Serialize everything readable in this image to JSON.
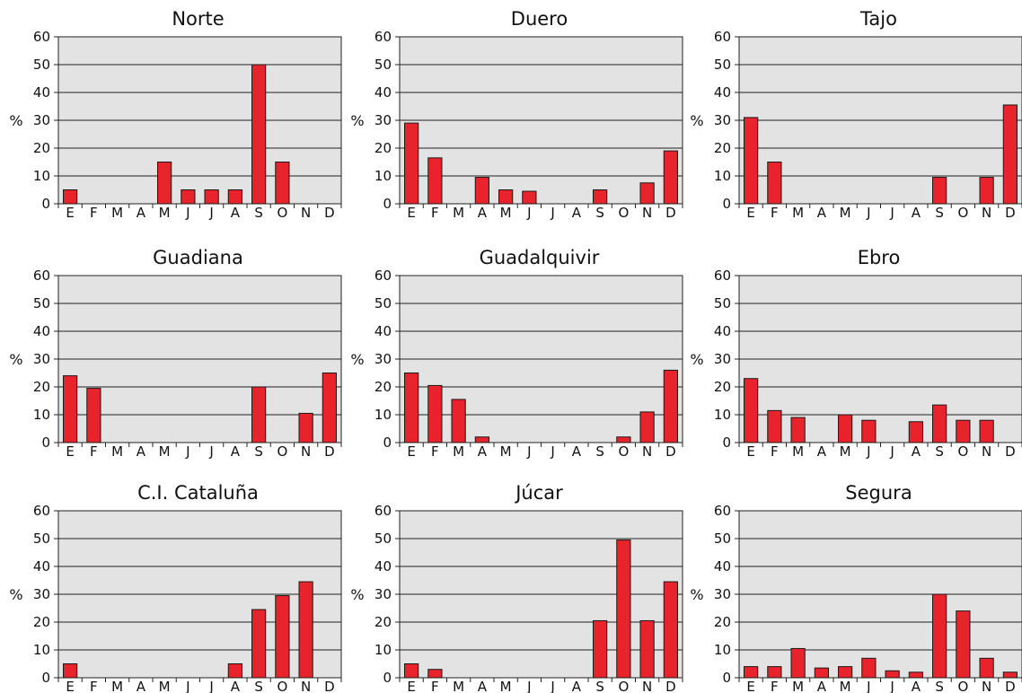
{
  "chart_data": [
    {
      "type": "bar",
      "title": "Norte",
      "ylabel": "%",
      "ylim": [
        0,
        60
      ],
      "yticks": [
        0,
        10,
        20,
        30,
        40,
        50,
        60
      ],
      "categories": [
        "E",
        "F",
        "M",
        "A",
        "M",
        "J",
        "J",
        "A",
        "S",
        "O",
        "N",
        "D"
      ],
      "values": [
        5,
        0,
        0,
        0,
        15,
        5,
        5,
        5,
        50,
        15,
        0,
        0
      ]
    },
    {
      "type": "bar",
      "title": "Duero",
      "ylabel": "%",
      "ylim": [
        0,
        60
      ],
      "yticks": [
        0,
        10,
        20,
        30,
        40,
        50,
        60
      ],
      "categories": [
        "E",
        "F",
        "M",
        "A",
        "M",
        "J",
        "J",
        "A",
        "S",
        "O",
        "N",
        "D"
      ],
      "values": [
        29,
        16.5,
        0,
        9.5,
        5,
        4.5,
        0,
        0,
        5,
        0,
        7.5,
        19
      ]
    },
    {
      "type": "bar",
      "title": "Tajo",
      "ylabel": "%",
      "ylim": [
        0,
        60
      ],
      "yticks": [
        0,
        10,
        20,
        30,
        40,
        50,
        60
      ],
      "categories": [
        "E",
        "F",
        "M",
        "A",
        "M",
        "J",
        "J",
        "A",
        "S",
        "O",
        "N",
        "D"
      ],
      "values": [
        31,
        15,
        0,
        0,
        0,
        0,
        0,
        0,
        9.5,
        0,
        9.5,
        35.5
      ]
    },
    {
      "type": "bar",
      "title": "Guadiana",
      "ylabel": "%",
      "ylim": [
        0,
        60
      ],
      "yticks": [
        0,
        10,
        20,
        30,
        40,
        50,
        60
      ],
      "categories": [
        "E",
        "F",
        "M",
        "A",
        "M",
        "J",
        "J",
        "A",
        "S",
        "O",
        "N",
        "D"
      ],
      "values": [
        24,
        19.5,
        0,
        0,
        0,
        0,
        0,
        0,
        20,
        0,
        10.5,
        25
      ]
    },
    {
      "type": "bar",
      "title": "Guadalquivir",
      "ylabel": "%",
      "ylim": [
        0,
        60
      ],
      "yticks": [
        0,
        10,
        20,
        30,
        40,
        50,
        60
      ],
      "categories": [
        "E",
        "F",
        "M",
        "A",
        "M",
        "J",
        "J",
        "A",
        "S",
        "O",
        "N",
        "D"
      ],
      "values": [
        25,
        20.5,
        15.5,
        2,
        0,
        0,
        0,
        0,
        0,
        2,
        11,
        26
      ]
    },
    {
      "type": "bar",
      "title": "Ebro",
      "ylabel": "%",
      "ylim": [
        0,
        60
      ],
      "yticks": [
        0,
        10,
        20,
        30,
        40,
        50,
        60
      ],
      "categories": [
        "E",
        "F",
        "M",
        "A",
        "M",
        "J",
        "J",
        "A",
        "S",
        "O",
        "N",
        "D"
      ],
      "values": [
        23,
        11.5,
        9,
        0,
        10,
        8,
        0,
        7.5,
        13.5,
        8,
        8,
        0
      ]
    },
    {
      "type": "bar",
      "title": "C.I. Cataluña",
      "ylabel": "%",
      "ylim": [
        0,
        60
      ],
      "yticks": [
        0,
        10,
        20,
        30,
        40,
        50,
        60
      ],
      "categories": [
        "E",
        "F",
        "M",
        "A",
        "M",
        "J",
        "J",
        "A",
        "S",
        "O",
        "N",
        "D"
      ],
      "values": [
        5,
        0,
        0,
        0,
        0,
        0,
        0,
        5,
        24.5,
        29.5,
        34.5,
        0
      ]
    },
    {
      "type": "bar",
      "title": "Júcar",
      "ylabel": "%",
      "ylim": [
        0,
        60
      ],
      "yticks": [
        0,
        10,
        20,
        30,
        40,
        50,
        60
      ],
      "categories": [
        "E",
        "F",
        "M",
        "A",
        "M",
        "J",
        "J",
        "A",
        "S",
        "O",
        "N",
        "D"
      ],
      "values": [
        5,
        3,
        0,
        0,
        0,
        0,
        0,
        0,
        20.5,
        49.5,
        20.5,
        34.5
      ]
    },
    {
      "type": "bar",
      "title": "Segura",
      "ylabel": "%",
      "ylim": [
        0,
        60
      ],
      "yticks": [
        0,
        10,
        20,
        30,
        40,
        50,
        60
      ],
      "categories": [
        "E",
        "F",
        "M",
        "A",
        "M",
        "J",
        "J",
        "A",
        "S",
        "O",
        "N",
        "D"
      ],
      "values": [
        4,
        4,
        10.5,
        3.5,
        4,
        7,
        2.5,
        2,
        30,
        24,
        7,
        2
      ]
    }
  ],
  "colors": {
    "bar": "#e8232b",
    "bar_stroke": "#1a1a1a",
    "plot_bg": "#e3e3e3",
    "grid": "#222222"
  }
}
